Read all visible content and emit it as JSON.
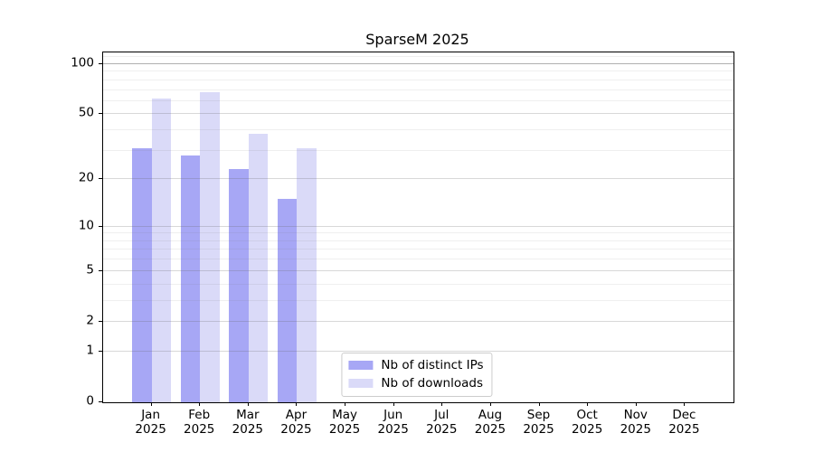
{
  "title": "SparseM 2025",
  "colors": {
    "bar_distinct_ips": "#a7a7f5",
    "bar_downloads": "#dadaf8",
    "grid_major": "rgba(100,100,100,0.25)",
    "grid_minor": "rgba(120,120,120,0.12)",
    "grid_top_line": "rgba(80,80,80,0.45)",
    "axis": "#000000",
    "legend_border": "#cccccc"
  },
  "legend": {
    "items": [
      {
        "label": "Nb of distinct IPs",
        "color_key": "bar_distinct_ips"
      },
      {
        "label": "Nb of downloads",
        "color_key": "bar_downloads"
      }
    ]
  },
  "chart_data": {
    "type": "bar",
    "title": "SparseM 2025",
    "categories": [
      "Jan 2025",
      "Feb 2025",
      "Mar 2025",
      "Apr 2025",
      "May 2025",
      "Jun 2025",
      "Jul 2025",
      "Aug 2025",
      "Sep 2025",
      "Oct 2025",
      "Nov 2025",
      "Dec 2025"
    ],
    "series": [
      {
        "name": "Nb of distinct IPs",
        "values": [
          31,
          28,
          23,
          15,
          null,
          null,
          null,
          null,
          null,
          null,
          null,
          null
        ]
      },
      {
        "name": "Nb of downloads",
        "values": [
          62,
          68,
          38,
          31,
          null,
          null,
          null,
          null,
          null,
          null,
          null,
          null
        ]
      }
    ],
    "yscale": "log1p",
    "ylabel": "",
    "xlabel": "",
    "y_major_ticks": [
      0,
      1,
      2,
      5,
      10,
      20,
      50,
      100
    ],
    "y_minor_gridlines": [
      3,
      4,
      6,
      7,
      8,
      9,
      30,
      40,
      60,
      70,
      80,
      90,
      110
    ],
    "ylim": [
      0,
      117.5
    ],
    "xlim": [
      -1,
      12
    ],
    "bar_width_units": 0.4,
    "grid": true,
    "legend_position": "lower center"
  }
}
